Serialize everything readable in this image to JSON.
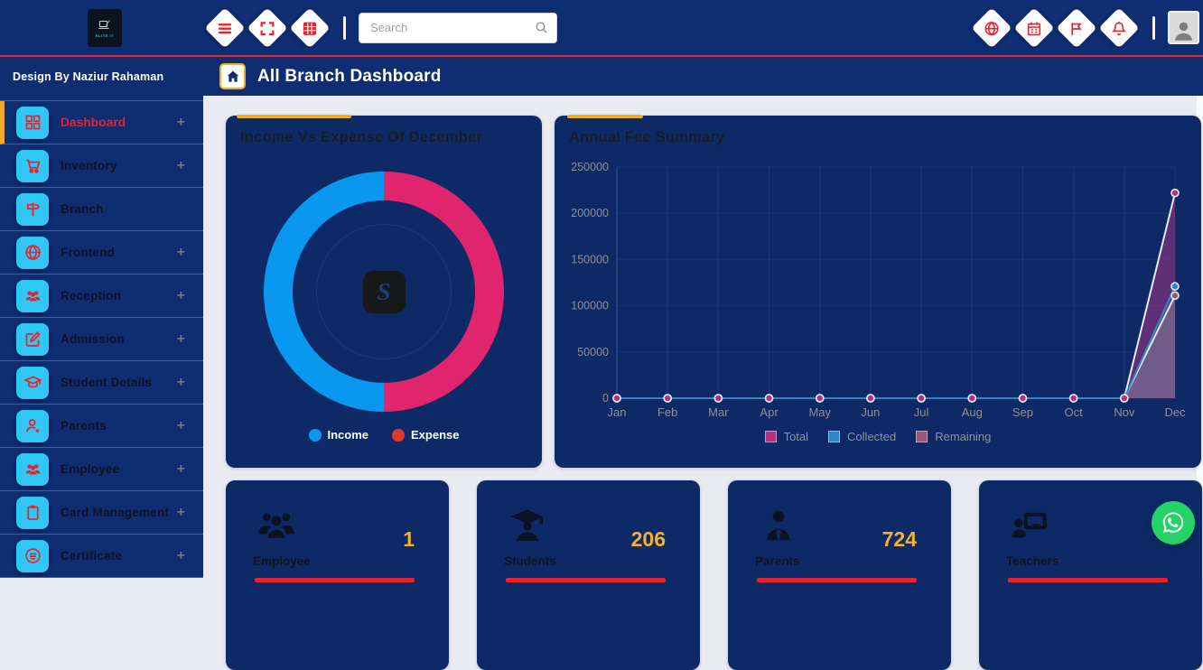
{
  "topbar": {
    "logo_text": "ELITE IT",
    "search": {
      "placeholder": "Search"
    },
    "left_icons": [
      "menu-icon",
      "fullscreen-icon",
      "grid-table-icon"
    ],
    "right_icons": [
      "globe-icon",
      "calendar-icon",
      "flag-icon",
      "bell-icon"
    ]
  },
  "sidebar": {
    "credit": "Design By Naziur Rahaman",
    "expand_glyph": "+",
    "items": [
      {
        "label": "Dashboard",
        "icon": "dashboard-grid-icon",
        "active": true,
        "expandable": true
      },
      {
        "label": "Inventory",
        "icon": "cart-icon",
        "active": false,
        "expandable": true
      },
      {
        "label": "Branch",
        "icon": "signpost-icon",
        "active": false,
        "expandable": false
      },
      {
        "label": "Frontend",
        "icon": "globe-icon",
        "active": false,
        "expandable": true
      },
      {
        "label": "Reception",
        "icon": "people-icon",
        "active": false,
        "expandable": true
      },
      {
        "label": "Admission",
        "icon": "edit-icon",
        "active": false,
        "expandable": true
      },
      {
        "label": "Student Details",
        "icon": "graduation-cap-icon",
        "active": false,
        "expandable": true
      },
      {
        "label": "Parents",
        "icon": "person-add-icon",
        "active": false,
        "expandable": true
      },
      {
        "label": "Employee",
        "icon": "people-icon",
        "active": false,
        "expandable": true
      },
      {
        "label": "Card Management",
        "icon": "clipboard-icon",
        "active": false,
        "expandable": true
      },
      {
        "label": "Certificate",
        "icon": "certificate-icon",
        "active": false,
        "expandable": true
      }
    ]
  },
  "page_header": {
    "title": "All Branch Dashboard"
  },
  "stats": [
    {
      "label": "Employee",
      "value": "1",
      "icon": "employees-icon"
    },
    {
      "label": "Students",
      "value": "206",
      "icon": "student-icon"
    },
    {
      "label": "Parents",
      "value": "724",
      "icon": "parent-icon"
    },
    {
      "label": "Teachers",
      "value": "",
      "icon": "teacher-icon"
    }
  ],
  "colors": {
    "chrome_navy": "#0e2d72",
    "card_navy": "#0d2a66",
    "accent_red": "#e8232e",
    "accent_gold": "#efae1f",
    "icon_cyan": "#2fc8f5",
    "stat_number_gold": "#f2b12e",
    "whatsapp_green": "#23d366"
  },
  "chart_data": [
    {
      "type": "pie",
      "title": "Income Vs Expense Of December",
      "donut": true,
      "labels": [
        "Income",
        "Expense"
      ],
      "values_percent": [
        50,
        50
      ],
      "slice_colors": [
        "#0a97f0",
        "#e0246e"
      ],
      "legend_colors": [
        "#0a97f0",
        "#e03a2f"
      ],
      "start_angle": 180,
      "legend_position": "bottom",
      "center_watermark": "S"
    },
    {
      "type": "area",
      "title": "Annual Fee Summary",
      "x": [
        "Jan",
        "Feb",
        "Mar",
        "Apr",
        "May",
        "Jun",
        "Jul",
        "Aug",
        "Sep",
        "Oct",
        "Nov",
        "Dec"
      ],
      "series": [
        {
          "name": "Total",
          "color": "#b03381",
          "fill": "rgba(176,51,129,0.50)",
          "line": "#e6e8f2",
          "values": [
            0,
            0,
            0,
            0,
            0,
            0,
            0,
            0,
            0,
            0,
            0,
            222000
          ]
        },
        {
          "name": "Collected",
          "color": "#2e86c5",
          "fill": "rgba(46,134,197,0.25)",
          "line": "#2e86c5",
          "values": [
            0,
            0,
            0,
            0,
            0,
            0,
            0,
            0,
            0,
            0,
            0,
            121000
          ]
        },
        {
          "name": "Remaining",
          "color": "#96587a",
          "fill": "rgba(150,88,122,0.72)",
          "line": "#e6e8f2",
          "values": [
            0,
            0,
            0,
            0,
            0,
            0,
            0,
            0,
            0,
            0,
            0,
            111000
          ]
        }
      ],
      "ylim": [
        0,
        250000
      ],
      "yticks": [
        0,
        50000,
        100000,
        150000,
        200000,
        250000
      ],
      "grid": true,
      "legend_position": "bottom"
    }
  ]
}
